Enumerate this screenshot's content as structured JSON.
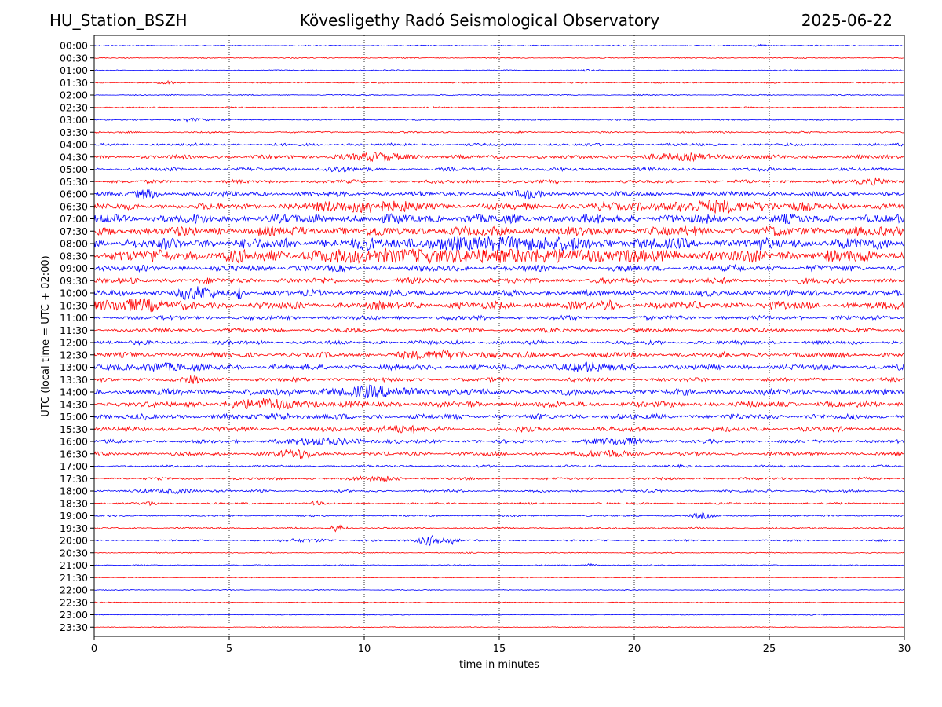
{
  "header": {
    "station": "HU_Station_BSZH",
    "observatory": "Kövesligethy Radó Seismological Observatory",
    "date": "2025-06-22"
  },
  "chart_data": {
    "type": "line",
    "title": "Kövesligethy Radó Seismological Observatory",
    "xlabel": "time in minutes",
    "ylabel": "UTC (local time = UTC + 02:00)",
    "xlim": [
      0,
      30
    ],
    "x_ticks": [
      "0",
      "5",
      "10",
      "15",
      "20",
      "25",
      "30"
    ],
    "grid": "vertical dotted lines every 5 minutes",
    "colors": {
      "even_rows": "#0000ff",
      "odd_rows": "#ff0000"
    },
    "rows": [
      {
        "label": "00:00",
        "amp": 0.5,
        "bursts": [
          [
            24.6,
            0.3,
            2.5
          ]
        ]
      },
      {
        "label": "00:30",
        "amp": 0.5,
        "bursts": []
      },
      {
        "label": "01:00",
        "amp": 0.5,
        "bursts": [
          [
            18.2,
            0.2,
            1.5
          ]
        ]
      },
      {
        "label": "01:30",
        "amp": 0.6,
        "bursts": [
          [
            2.7,
            0.3,
            3
          ]
        ]
      },
      {
        "label": "02:00",
        "amp": 0.5,
        "bursts": []
      },
      {
        "label": "02:30",
        "amp": 0.6,
        "bursts": []
      },
      {
        "label": "03:00",
        "amp": 0.6,
        "bursts": [
          [
            3.6,
            0.6,
            3
          ]
        ]
      },
      {
        "label": "03:30",
        "amp": 0.8,
        "bursts": []
      },
      {
        "label": "04:00",
        "amp": 1.3,
        "bursts": []
      },
      {
        "label": "04:30",
        "amp": 1.8,
        "bursts": [
          [
            10.5,
            1.5,
            2
          ],
          [
            22,
            2,
            1.5
          ]
        ]
      },
      {
        "label": "05:00",
        "amp": 1.6,
        "bursts": [
          [
            9,
            0.6,
            1.8
          ]
        ]
      },
      {
        "label": "05:30",
        "amp": 1.6,
        "bursts": [
          [
            29,
            0.6,
            2
          ]
        ]
      },
      {
        "label": "06:00",
        "amp": 2.3,
        "bursts": [
          [
            2,
            0.5,
            1.5
          ],
          [
            16,
            0.5,
            1.5
          ]
        ]
      },
      {
        "label": "06:30",
        "amp": 3.0,
        "bursts": [
          [
            10,
            1.5,
            2.2
          ],
          [
            23,
            3,
            1.5
          ]
        ]
      },
      {
        "label": "07:00",
        "amp": 4.2,
        "bursts": []
      },
      {
        "label": "07:30",
        "amp": 4.5,
        "bursts": []
      },
      {
        "label": "08:00",
        "amp": 5.2,
        "bursts": [
          [
            15,
            3,
            1.3
          ]
        ]
      },
      {
        "label": "08:30",
        "amp": 5.8,
        "bursts": [
          [
            12,
            3,
            1.4
          ],
          [
            17,
            2,
            1.3
          ]
        ]
      },
      {
        "label": "09:00",
        "amp": 2.8,
        "bursts": []
      },
      {
        "label": "09:30",
        "amp": 2.6,
        "bursts": []
      },
      {
        "label": "10:00",
        "amp": 2.8,
        "bursts": [
          [
            3.8,
            0.6,
            3.5
          ],
          [
            5.4,
            0.1,
            3
          ]
        ]
      },
      {
        "label": "10:30",
        "amp": 3.5,
        "bursts": [
          [
            1.5,
            1,
            2.2
          ],
          [
            19,
            0.2,
            2
          ]
        ]
      },
      {
        "label": "11:00",
        "amp": 2.0,
        "bursts": []
      },
      {
        "label": "11:30",
        "amp": 1.8,
        "bursts": []
      },
      {
        "label": "12:00",
        "amp": 1.9,
        "bursts": []
      },
      {
        "label": "12:30",
        "amp": 2.4,
        "bursts": [
          [
            13,
            1.5,
            1.6
          ]
        ]
      },
      {
        "label": "13:00",
        "amp": 2.6,
        "bursts": [
          [
            2.5,
            1,
            1.6
          ],
          [
            18,
            1,
            1.5
          ]
        ]
      },
      {
        "label": "13:30",
        "amp": 1.9,
        "bursts": [
          [
            3.7,
            0.2,
            2
          ]
        ]
      },
      {
        "label": "14:00",
        "amp": 2.9,
        "bursts": [
          [
            10.5,
            2,
            1.6
          ]
        ]
      },
      {
        "label": "14:30",
        "amp": 2.8,
        "bursts": [
          [
            6.5,
            1.5,
            1.6
          ]
        ]
      },
      {
        "label": "15:00",
        "amp": 2.6,
        "bursts": [
          [
            7,
            0.5,
            1.5
          ]
        ]
      },
      {
        "label": "15:30",
        "amp": 2.3,
        "bursts": [
          [
            11,
            1,
            1.4
          ]
        ]
      },
      {
        "label": "16:00",
        "amp": 1.7,
        "bursts": [
          [
            8.5,
            1.5,
            2
          ],
          [
            19.5,
            1,
            1.8
          ]
        ]
      },
      {
        "label": "16:30",
        "amp": 1.7,
        "bursts": [
          [
            7.5,
            0.8,
            2.5
          ],
          [
            19,
            1,
            2
          ]
        ]
      },
      {
        "label": "17:00",
        "amp": 1.1,
        "bursts": []
      },
      {
        "label": "17:30",
        "amp": 1.2,
        "bursts": [
          [
            10.5,
            0.8,
            2
          ]
        ]
      },
      {
        "label": "18:00",
        "amp": 1.1,
        "bursts": [
          [
            3,
            1,
            2
          ]
        ]
      },
      {
        "label": "18:30",
        "amp": 0.9,
        "bursts": [
          [
            2.1,
            0.3,
            3
          ],
          [
            8.2,
            0.2,
            2
          ]
        ]
      },
      {
        "label": "19:00",
        "amp": 0.8,
        "bursts": [
          [
            22.5,
            0.4,
            4
          ]
        ]
      },
      {
        "label": "19:30",
        "amp": 0.8,
        "bursts": [
          [
            9,
            0.3,
            5
          ]
        ]
      },
      {
        "label": "20:00",
        "amp": 0.8,
        "bursts": [
          [
            8,
            1,
            2
          ],
          [
            12.5,
            0.5,
            8
          ],
          [
            13.3,
            0.2,
            5
          ]
        ]
      },
      {
        "label": "20:30",
        "amp": 0.5,
        "bursts": []
      },
      {
        "label": "21:00",
        "amp": 0.5,
        "bursts": [
          [
            18.4,
            0.2,
            4
          ]
        ]
      },
      {
        "label": "21:30",
        "amp": 0.4,
        "bursts": []
      },
      {
        "label": "22:00",
        "amp": 0.4,
        "bursts": []
      },
      {
        "label": "22:30",
        "amp": 0.4,
        "bursts": []
      },
      {
        "label": "23:00",
        "amp": 0.4,
        "bursts": [
          [
            26.8,
            0.3,
            2
          ]
        ]
      },
      {
        "label": "23:30",
        "amp": 0.4,
        "bursts": []
      }
    ]
  }
}
